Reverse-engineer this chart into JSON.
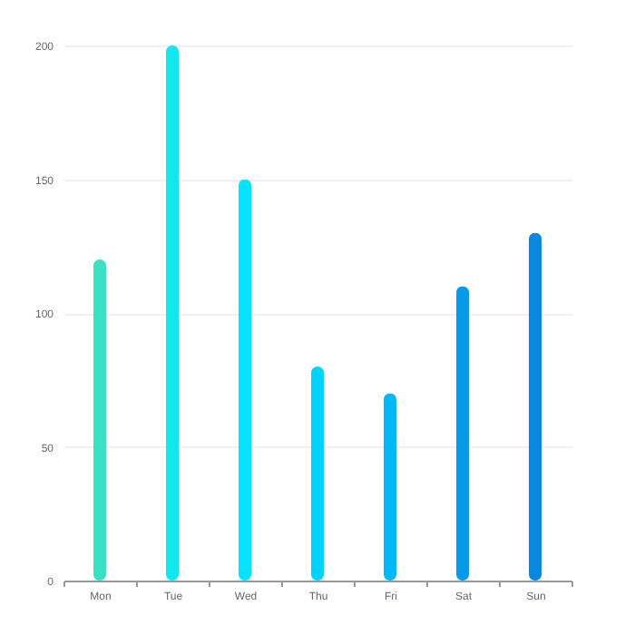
{
  "chart_data": {
    "type": "bar",
    "categories": [
      "Mon",
      "Tue",
      "Wed",
      "Thu",
      "Fri",
      "Sat",
      "Sun"
    ],
    "values": [
      120,
      200,
      150,
      80,
      70,
      110,
      130
    ],
    "colors": [
      "#3ae0c4",
      "#10e8f0",
      "#05e4fc",
      "#00d2fc",
      "#04b8f8",
      "#079ae8",
      "#0a88e0"
    ],
    "ylim": [
      0,
      200
    ],
    "yticks": [
      0,
      50,
      100,
      150,
      200
    ],
    "grid": "y"
  }
}
